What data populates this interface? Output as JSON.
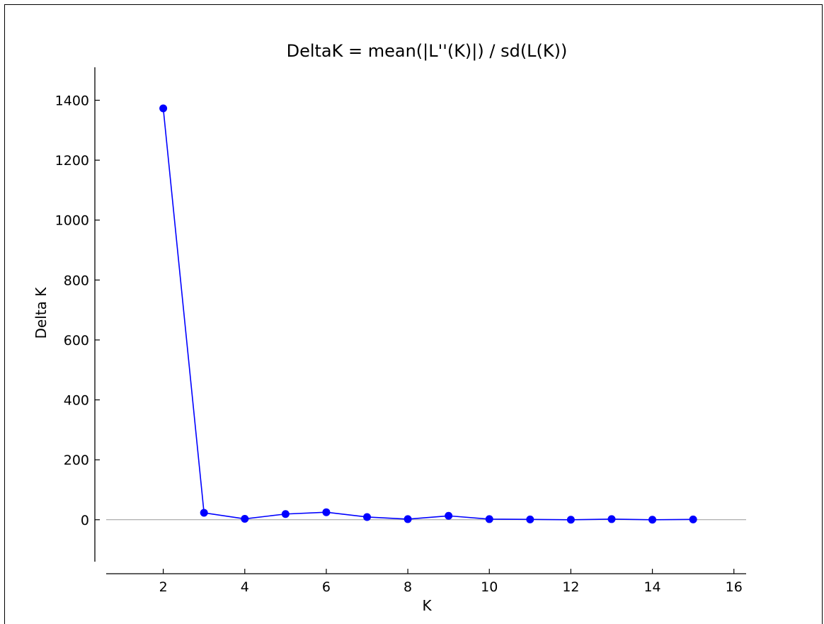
{
  "chart_data": {
    "type": "line",
    "title": "DeltaK = mean(|L''(K)|) / sd(L(K))",
    "xlabel": "K",
    "ylabel": "Delta K",
    "xlim": [
      0.6,
      16.3
    ],
    "ylim": [
      -140,
      1510
    ],
    "xticks": [
      2,
      4,
      6,
      8,
      10,
      12,
      14,
      16
    ],
    "yticks": [
      0,
      200,
      400,
      600,
      800,
      1000,
      1200,
      1400
    ],
    "zero_line": true,
    "grid": false,
    "legend": "none",
    "series": [
      {
        "x": [
          2,
          3,
          4,
          5,
          6,
          7,
          8,
          9,
          10,
          11,
          12,
          13,
          14,
          15
        ],
        "y": [
          1373,
          23,
          3,
          19,
          25,
          9,
          2,
          13,
          2,
          1,
          0,
          2,
          0,
          1
        ]
      }
    ]
  },
  "colors": {
    "series": "#0000ff",
    "axis": "#000000",
    "zero_line": "#999999"
  }
}
